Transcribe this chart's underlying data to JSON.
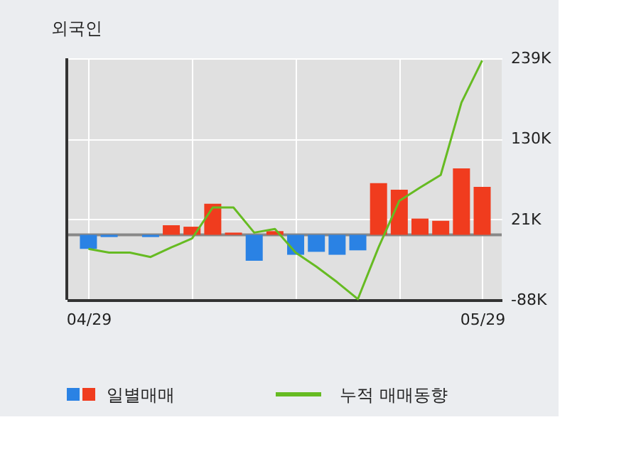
{
  "chart_data": {
    "type": "bar",
    "title": "외국인",
    "categories": [
      "04/29",
      null,
      null,
      null,
      null,
      null,
      null,
      null,
      null,
      null,
      null,
      null,
      null,
      null,
      null,
      null,
      null,
      null,
      null,
      "05/29"
    ],
    "series": [
      {
        "name": "일별매매",
        "colors": [
          "#2a82e4",
          "#2a82e4",
          "#2a82e4",
          "#2a82e4",
          "#f03c1e",
          "#f03c1e",
          "#f03c1e",
          "#f03c1e",
          "#2a82e4",
          "#f03c1e",
          "#2a82e4",
          "#2a82e4",
          "#2a82e4",
          "#2a82e4",
          "#f03c1e",
          "#f03c1e",
          "#f03c1e",
          "#f03c1e",
          "#f03c1e",
          "#f03c1e"
        ],
        "values": [
          -19,
          -3,
          0,
          -3,
          13,
          11,
          42,
          3,
          -35,
          5,
          -27,
          -23,
          -27,
          -21,
          70,
          61,
          22,
          19,
          90,
          65
        ]
      },
      {
        "name": "누적 매매동향",
        "type": "line",
        "color": "#66bb22",
        "values": [
          -19,
          -24,
          -24,
          -30,
          -17,
          -5,
          37,
          37,
          3,
          8,
          -24,
          -43,
          -64,
          -87,
          -17,
          46,
          64,
          81,
          179,
          236
        ]
      }
    ],
    "ylim": [
      -88,
      239
    ],
    "yticks": [
      {
        "value": 239,
        "label": "239K"
      },
      {
        "value": 130,
        "label": "130K"
      },
      {
        "value": 21,
        "label": "21K"
      },
      {
        "value": -88,
        "label": "-88K"
      }
    ],
    "ref_lines": [
      {
        "axis": "y",
        "value": 0,
        "color": "#888888"
      }
    ],
    "grid": true,
    "legend": "bottom"
  }
}
